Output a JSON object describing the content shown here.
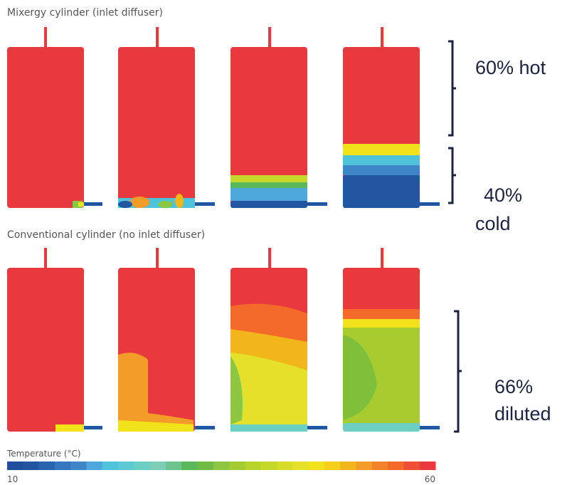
{
  "top_panel": {
    "title": "Mixergy cylinder (inlet diffuser)"
  },
  "bottom_panel": {
    "title": "Conventional cylinder (no inlet diffuser)"
  },
  "annotations": {
    "hot": [
      "60% hot"
    ],
    "cold": [
      "40%",
      "cold"
    ],
    "diluted": [
      "66%",
      "diluted"
    ]
  },
  "colorbar": {
    "title": "Temperature (°C)",
    "min_label": "10",
    "max_label": "60"
  }
}
